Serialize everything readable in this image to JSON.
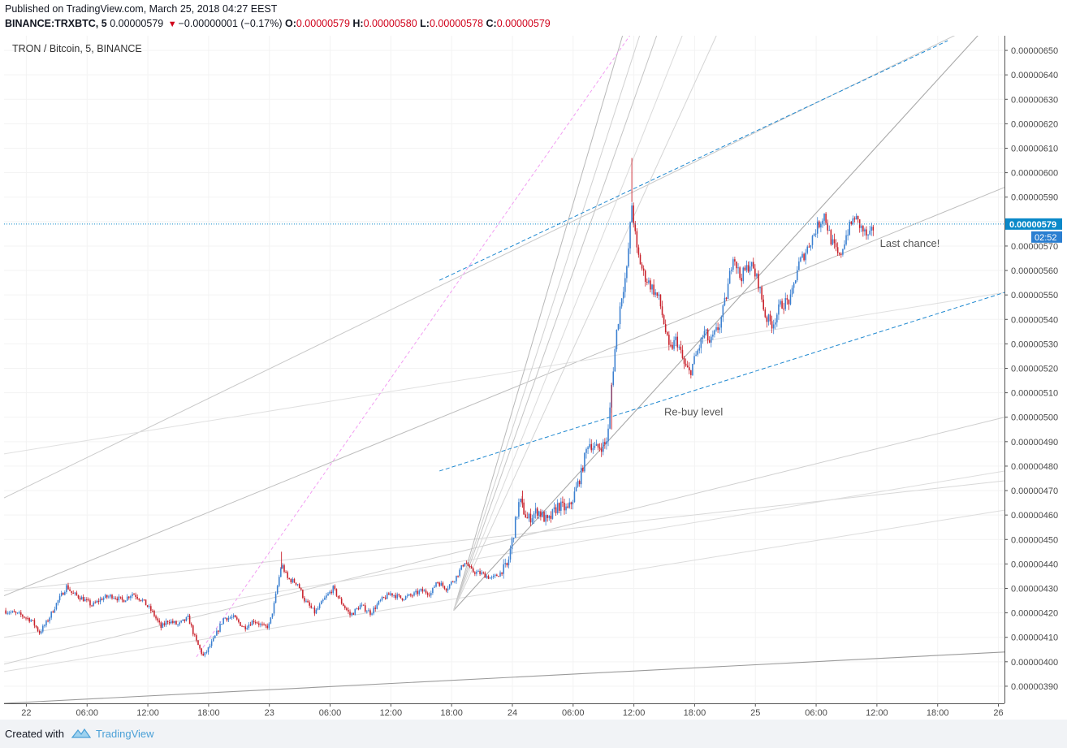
{
  "header": {
    "published": "Published on TradingView.com, March 25, 2018 04:27 EEST",
    "symbol_prefix": "BINANCE:TRXBTC, 5",
    "last": "0.00000579",
    "change": "−0.00000001 (−0.17%)",
    "o_label": "O:",
    "o_value": "0.00000579",
    "h_label": "H:",
    "h_value": "0.00000580",
    "l_label": "L:",
    "l_value": "0.00000578",
    "c_label": "C:",
    "c_value": "0.00000579"
  },
  "footer": {
    "created_with": "Created with",
    "brand": "TradingView"
  },
  "colors": {
    "up": "#3a7fd0",
    "down": "#c8202a",
    "accent": "#0a89c9",
    "trend": "#b0b0b0",
    "fib_pink": "#f29cf2"
  },
  "chart_data": {
    "type": "candlestick",
    "title": "TRON / Bitcoin, 5, BINANCE",
    "ylim": [
      3.83e-06,
      6.56e-06
    ],
    "y_ticks": [
      "0.00000650",
      "0.00000640",
      "0.00000630",
      "0.00000620",
      "0.00000610",
      "0.00000600",
      "0.00000590",
      "0.00000580",
      "0.00000570",
      "0.00000560",
      "0.00000550",
      "0.00000540",
      "0.00000530",
      "0.00000520",
      "0.00000510",
      "0.00000500",
      "0.00000490",
      "0.00000480",
      "0.00000470",
      "0.00000460",
      "0.00000450",
      "0.00000440",
      "0.00000430",
      "0.00000420",
      "0.00000410",
      "0.00000400",
      "0.00000390"
    ],
    "x_ticks": [
      "22",
      "06:00",
      "12:00",
      "18:00",
      "23",
      "06:00",
      "12:00",
      "18:00",
      "24",
      "06:00",
      "12:00",
      "18:00",
      "25",
      "06:00",
      "12:00",
      "18:00",
      "26"
    ],
    "x_tick_hours": [
      0,
      6,
      12,
      18,
      24,
      30,
      36,
      42,
      48,
      54,
      60,
      66,
      72,
      78,
      84,
      90,
      96
    ],
    "x_window_hours": [
      -2.2,
      96.6
    ],
    "last_price_label": "0.00000579",
    "countdown_label": "02:52",
    "close_path": [
      [
        -2.2,
        421
      ],
      [
        -0.5,
        419
      ],
      [
        0.5,
        417
      ],
      [
        1.3,
        412
      ],
      [
        2.0,
        416
      ],
      [
        3.0,
        424
      ],
      [
        4.0,
        431
      ],
      [
        4.5,
        428
      ],
      [
        5.5,
        426
      ],
      [
        6.5,
        423
      ],
      [
        7.5,
        426
      ],
      [
        8.5,
        427
      ],
      [
        9.5,
        425
      ],
      [
        10.5,
        428
      ],
      [
        11.5,
        425
      ],
      [
        12.5,
        420
      ],
      [
        13.3,
        414
      ],
      [
        14.0,
        417
      ],
      [
        15.0,
        415
      ],
      [
        16.0,
        418
      ],
      [
        16.7,
        409
      ],
      [
        17.5,
        402
      ],
      [
        18.5,
        409
      ],
      [
        19.5,
        418
      ],
      [
        20.5,
        418
      ],
      [
        21.5,
        414
      ],
      [
        22.5,
        417
      ],
      [
        23.5,
        414
      ],
      [
        24.0,
        415
      ],
      [
        24.5,
        424
      ],
      [
        25.2,
        440
      ],
      [
        25.8,
        434
      ],
      [
        26.8,
        432
      ],
      [
        27.5,
        425
      ],
      [
        28.5,
        420
      ],
      [
        29.5,
        426
      ],
      [
        30.3,
        430
      ],
      [
        31.0,
        425
      ],
      [
        32.0,
        419
      ],
      [
        33.0,
        423
      ],
      [
        34.0,
        420
      ],
      [
        35.0,
        425
      ],
      [
        36.0,
        428
      ],
      [
        37.0,
        426
      ],
      [
        38.0,
        427
      ],
      [
        39.0,
        429
      ],
      [
        40.0,
        428
      ],
      [
        40.5,
        433
      ],
      [
        41.5,
        430
      ],
      [
        42.5,
        435
      ],
      [
        43.3,
        441
      ],
      [
        44.0,
        437
      ],
      [
        45.0,
        436
      ],
      [
        46.0,
        434
      ],
      [
        46.7,
        436
      ],
      [
        47.5,
        439
      ],
      [
        48.0,
        450
      ],
      [
        48.7,
        466
      ],
      [
        49.5,
        458
      ],
      [
        50.5,
        462
      ],
      [
        51.5,
        457
      ],
      [
        52.5,
        464
      ],
      [
        53.5,
        462
      ],
      [
        54.0,
        467
      ],
      [
        54.8,
        477
      ],
      [
        55.5,
        490
      ],
      [
        56.2,
        487
      ],
      [
        57.2,
        489
      ],
      [
        57.5,
        495
      ],
      [
        57.8,
        513
      ],
      [
        58.3,
        535
      ],
      [
        58.8,
        550
      ],
      [
        59.3,
        560
      ],
      [
        59.8,
        587
      ],
      [
        60.3,
        568
      ],
      [
        61.0,
        558
      ],
      [
        61.8,
        553
      ],
      [
        62.5,
        548
      ],
      [
        63.0,
        538
      ],
      [
        63.5,
        527
      ],
      [
        64.2,
        532
      ],
      [
        65.0,
        521
      ],
      [
        65.5,
        518
      ],
      [
        66.3,
        527
      ],
      [
        67.0,
        535
      ],
      [
        67.5,
        530
      ],
      [
        68.5,
        538
      ],
      [
        69.2,
        551
      ],
      [
        69.8,
        567
      ],
      [
        70.5,
        557
      ],
      [
        71.5,
        563
      ],
      [
        72.3,
        555
      ],
      [
        73.0,
        541
      ],
      [
        73.7,
        538
      ],
      [
        74.5,
        546
      ],
      [
        75.5,
        548
      ],
      [
        76.2,
        562
      ],
      [
        77.0,
        568
      ],
      [
        78.0,
        577
      ],
      [
        78.8,
        583
      ],
      [
        79.5,
        572
      ],
      [
        80.3,
        565
      ],
      [
        81.0,
        575
      ],
      [
        81.8,
        582
      ],
      [
        82.5,
        577
      ],
      [
        83.2,
        573
      ],
      [
        83.8,
        579
      ]
    ],
    "annotations": [
      {
        "text": "Last chance!",
        "hour": 84.3,
        "price": 569.7
      },
      {
        "text": "Re-buy level",
        "hour": 63.0,
        "price": 500.8
      }
    ]
  }
}
